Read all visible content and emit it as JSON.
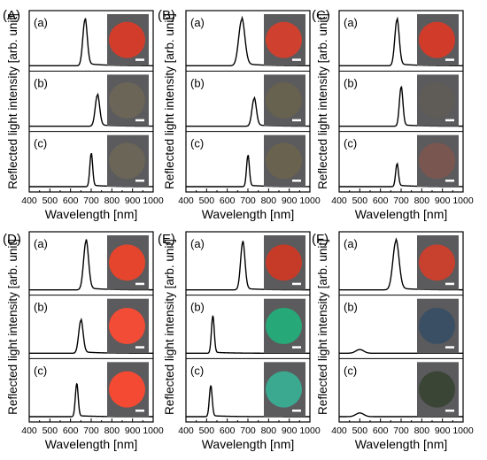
{
  "figure": {
    "xlabel": "Wavelength [nm]",
    "ylabel": "Reflected light intensity [arb. unit]"
  },
  "chart_data": [
    {
      "type": "line",
      "panel_label": "(A)",
      "xlim": [
        400,
        1000
      ],
      "xticks": [
        400,
        500,
        600,
        700,
        800,
        900,
        1000
      ],
      "xlabel": "Wavelength [nm]",
      "ylabel": "Reflected light intensity [arb. unit]",
      "grid": false,
      "series": [
        {
          "label": "(a)",
          "peak_nm": 670,
          "rel_height": 0.92,
          "fwhm_nm": 25,
          "base": 0.0,
          "tail": 0.05,
          "inset_color": "#d13d2a"
        },
        {
          "label": "(b)",
          "peak_nm": 730,
          "rel_height": 0.62,
          "fwhm_nm": 25,
          "base": 0.0,
          "tail": 0.03,
          "inset_color": "#6b6557"
        },
        {
          "label": "(c)",
          "peak_nm": 700,
          "rel_height": 0.66,
          "fwhm_nm": 16,
          "base": 0.0,
          "tail": 0.03,
          "inset_color": "#6a6557"
        }
      ]
    },
    {
      "type": "line",
      "panel_label": "(B)",
      "xlim": [
        400,
        1000
      ],
      "xticks": [
        400,
        500,
        600,
        700,
        800,
        900,
        1000
      ],
      "xlabel": "Wavelength [nm]",
      "ylabel": "Reflected light intensity [arb. unit]",
      "grid": false,
      "series": [
        {
          "label": "(a)",
          "peak_nm": 670,
          "rel_height": 0.92,
          "fwhm_nm": 35,
          "base": 0.0,
          "tail": 0.05,
          "inset_color": "#d0402e"
        },
        {
          "label": "(b)",
          "peak_nm": 730,
          "rel_height": 0.55,
          "fwhm_nm": 25,
          "base": 0.0,
          "tail": 0.03,
          "inset_color": "#67614f"
        },
        {
          "label": "(c)",
          "peak_nm": 700,
          "rel_height": 0.62,
          "fwhm_nm": 16,
          "base": 0.0,
          "tail": 0.03,
          "inset_color": "#69624f"
        }
      ]
    },
    {
      "type": "line",
      "panel_label": "(C)",
      "xlim": [
        400,
        1000
      ],
      "xticks": [
        400,
        500,
        600,
        700,
        800,
        900,
        1000
      ],
      "xlabel": "Wavelength [nm]",
      "ylabel": "Reflected light intensity [arb. unit]",
      "grid": false,
      "series": [
        {
          "label": "(a)",
          "peak_nm": 680,
          "rel_height": 0.92,
          "fwhm_nm": 25,
          "base": 0.0,
          "tail": 0.04,
          "inset_color": "#d13c2a"
        },
        {
          "label": "(b)",
          "peak_nm": 700,
          "rel_height": 0.78,
          "fwhm_nm": 20,
          "base": 0.0,
          "tail": 0.03,
          "inset_color": "#5f5c57"
        },
        {
          "label": "(c)",
          "peak_nm": 680,
          "rel_height": 0.45,
          "fwhm_nm": 16,
          "base": 0.0,
          "tail": 0.03,
          "inset_color": "#7a5650"
        }
      ]
    },
    {
      "type": "line",
      "panel_label": "(D)",
      "xlim": [
        400,
        1000
      ],
      "xticks": [
        400,
        500,
        600,
        700,
        800,
        900,
        1000
      ],
      "xlabel": "Wavelength [nm]",
      "ylabel": "Reflected light intensity [arb. unit]",
      "grid": false,
      "series": [
        {
          "label": "(a)",
          "peak_nm": 675,
          "rel_height": 0.92,
          "fwhm_nm": 28,
          "base": 0.0,
          "tail": 0.04,
          "inset_color": "#e5452c"
        },
        {
          "label": "(b)",
          "peak_nm": 650,
          "rel_height": 0.62,
          "fwhm_nm": 25,
          "base": 0.0,
          "tail": 0.03,
          "inset_color": "#f24b36"
        },
        {
          "label": "(c)",
          "peak_nm": 630,
          "rel_height": 0.62,
          "fwhm_nm": 16,
          "base": 0.0,
          "tail": 0.02,
          "inset_color": "#f44a34"
        }
      ]
    },
    {
      "type": "line",
      "panel_label": "(E)",
      "xlim": [
        400,
        1000
      ],
      "xticks": [
        400,
        500,
        600,
        700,
        800,
        900,
        1000
      ],
      "xlabel": "Wavelength [nm]",
      "ylabel": "Reflected light intensity [arb. unit]",
      "grid": false,
      "series": [
        {
          "label": "(a)",
          "peak_nm": 675,
          "rel_height": 0.9,
          "fwhm_nm": 25,
          "base": 0.0,
          "tail": 0.03,
          "inset_color": "#c63b28"
        },
        {
          "label": "(b)",
          "peak_nm": 530,
          "rel_height": 0.7,
          "fwhm_nm": 16,
          "base": 0.0,
          "tail": 0.02,
          "inset_color": "#27a878"
        },
        {
          "label": "(c)",
          "peak_nm": 520,
          "rel_height": 0.58,
          "fwhm_nm": 16,
          "base": 0.0,
          "tail": 0.02,
          "inset_color": "#3ba890"
        }
      ]
    },
    {
      "type": "line",
      "panel_label": "(F)",
      "xlim": [
        400,
        1000
      ],
      "xticks": [
        400,
        500,
        600,
        700,
        800,
        900,
        1000
      ],
      "xlabel": "Wavelength [nm]",
      "ylabel": "Reflected light intensity [arb. unit]",
      "grid": false,
      "series": [
        {
          "label": "(a)",
          "peak_nm": 675,
          "rel_height": 0.92,
          "fwhm_nm": 35,
          "base": 0.0,
          "tail": 0.04,
          "inset_color": "#c8402e"
        },
        {
          "label": "(b)",
          "peak_nm": 500,
          "rel_height": 0.07,
          "fwhm_nm": 45,
          "base": 0.0,
          "tail": 0.0,
          "inset_color": "#3a4f64"
        },
        {
          "label": "(c)",
          "peak_nm": 500,
          "rel_height": 0.07,
          "fwhm_nm": 45,
          "base": 0.0,
          "tail": 0.0,
          "inset_color": "#3a4536"
        }
      ]
    }
  ]
}
